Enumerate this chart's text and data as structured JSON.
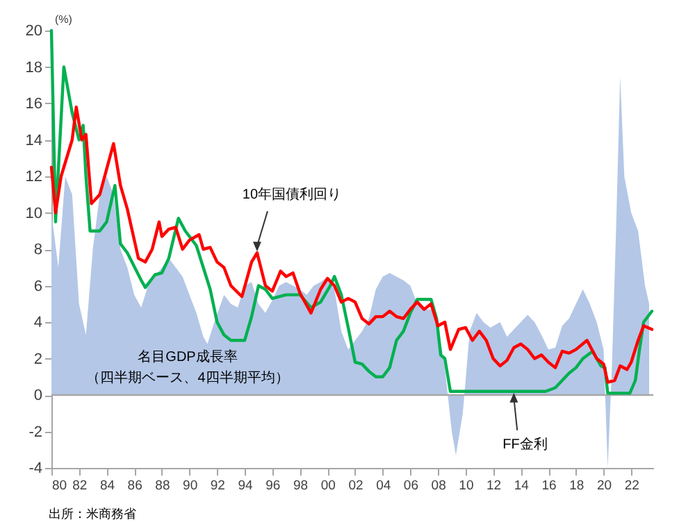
{
  "chart_data": {
    "type": "line",
    "ylabel": "(%)",
    "xlim": [
      1980,
      2023.6
    ],
    "xticks": [
      {
        "value": 1980,
        "label": "80"
      },
      {
        "value": 1982,
        "label": "82"
      },
      {
        "value": 1984,
        "label": "84"
      },
      {
        "value": 1986,
        "label": "86"
      },
      {
        "value": 1988,
        "label": "88"
      },
      {
        "value": 1990,
        "label": "90"
      },
      {
        "value": 1992,
        "label": "92"
      },
      {
        "value": 1994,
        "label": "94"
      },
      {
        "value": 1996,
        "label": "96"
      },
      {
        "value": 1998,
        "label": "98"
      },
      {
        "value": 2000,
        "label": "00"
      },
      {
        "value": 2002,
        "label": "02"
      },
      {
        "value": 2004,
        "label": "04"
      },
      {
        "value": 2006,
        "label": "06"
      },
      {
        "value": 2008,
        "label": "08"
      },
      {
        "value": 2010,
        "label": "10"
      },
      {
        "value": 2012,
        "label": "12"
      },
      {
        "value": 2014,
        "label": "14"
      },
      {
        "value": 2016,
        "label": "16"
      },
      {
        "value": 2018,
        "label": "18"
      },
      {
        "value": 2020,
        "label": "20"
      },
      {
        "value": 2022,
        "label": "22"
      }
    ],
    "ylim": [
      -4,
      20
    ],
    "yticks": [
      -4,
      -2,
      0,
      2,
      4,
      6,
      8,
      10,
      12,
      14,
      16,
      18,
      20
    ],
    "ref_lines": [
      {
        "axis": "y",
        "value": 0,
        "color": "#a6a6a6"
      }
    ],
    "series": [
      {
        "type": "area",
        "color": "#b4c7e7",
        "x": [
          1980,
          1980.5,
          1981,
          1981.5,
          1982,
          1982.5,
          1983,
          1983.5,
          1984,
          1984.5,
          1985,
          1985.5,
          1986,
          1986.5,
          1987,
          1987.5,
          1988,
          1988.5,
          1989,
          1989.5,
          1990,
          1990.5,
          1991,
          1991.3,
          1991.8,
          1992.5,
          1993,
          1993.5,
          1994,
          1994.5,
          1995,
          1995.5,
          1996,
          1996.5,
          1997,
          1998,
          1998.5,
          1999,
          1999.5,
          2000,
          2000.5,
          2001,
          2001.5,
          2002,
          2002.5,
          2003,
          2003.5,
          2004,
          2004.5,
          2005,
          2005.5,
          2006,
          2006.5,
          2007,
          2007.5,
          2008,
          2008.5,
          2009,
          2009.3,
          2009.8,
          2010.3,
          2010.8,
          2011.3,
          2011.8,
          2012.5,
          2013,
          2013.5,
          2014,
          2014.5,
          2015,
          2015.5,
          2016,
          2016.5,
          2017,
          2017.5,
          2018,
          2018.5,
          2019,
          2019.5,
          2020,
          2020.3,
          2020.6,
          2020.9,
          2021.2,
          2021.5,
          2022,
          2022.5,
          2023,
          2023.3
        ],
        "values": [
          10,
          7,
          12,
          11,
          5,
          3.3,
          8,
          11,
          12,
          11,
          8,
          7,
          5.5,
          4.8,
          6,
          6.5,
          7,
          7.5,
          7,
          6.5,
          5.5,
          4.5,
          3.2,
          2.8,
          4,
          5.5,
          5,
          4.8,
          6,
          6.2,
          5,
          4.5,
          5.2,
          6,
          6.2,
          5.8,
          5.5,
          6,
          6.2,
          6.5,
          5.8,
          3.5,
          2.5,
          3,
          3.5,
          4.2,
          5.8,
          6.5,
          6.7,
          6.5,
          6.3,
          6,
          5,
          4.7,
          4.7,
          3.8,
          1.5,
          -2,
          -3.3,
          -1,
          3.5,
          4.5,
          4,
          3.7,
          4,
          3.2,
          3.6,
          4,
          4.4,
          4,
          3.3,
          2.5,
          2.6,
          3.8,
          4.2,
          5,
          5.8,
          5,
          4,
          2.5,
          -4,
          1.5,
          9,
          17.5,
          12,
          10,
          9,
          6,
          5
        ]
      },
      {
        "color": "#00b050",
        "x": [
          1980,
          1980.3,
          1980.9,
          1981.5,
          1982,
          1982.3,
          1982.5,
          1982.8,
          1983.5,
          1984,
          1984.6,
          1985,
          1985.5,
          1986.5,
          1986.8,
          1987.5,
          1988,
          1988.5,
          1989.2,
          1989.7,
          1990.5,
          1991,
          1991.5,
          1992,
          1992.5,
          1993,
          1994,
          1994.5,
          1995,
          1995.5,
          1996,
          1997,
          1998,
          1998.8,
          1999.5,
          2000.2,
          2000.5,
          2001,
          2001.5,
          2002,
          2002.5,
          2003,
          2003.5,
          2004,
          2004.5,
          2005,
          2005.5,
          2006,
          2006.5,
          2007.5,
          2007.9,
          2008.2,
          2008.5,
          2008.9,
          2015.8,
          2016.5,
          2017,
          2017.5,
          2018,
          2018.5,
          2019.2,
          2019.8,
          2020.1,
          2020.3,
          2021.9,
          2022.3,
          2022.6,
          2022.9,
          2023.5
        ],
        "values": [
          20,
          9.5,
          18,
          15.5,
          14,
          14.8,
          12,
          9,
          9,
          9.5,
          11.5,
          8.3,
          7.8,
          6.3,
          5.9,
          6.6,
          6.7,
          7.5,
          9.7,
          9,
          8.2,
          7,
          5.8,
          4,
          3.3,
          3,
          3,
          4.3,
          6,
          5.8,
          5.3,
          5.5,
          5.5,
          4.8,
          5.1,
          6,
          6.5,
          5.5,
          3.7,
          1.8,
          1.7,
          1.3,
          1,
          1,
          1.5,
          3,
          3.5,
          4.5,
          5.25,
          5.25,
          4.2,
          2.2,
          2,
          0.2,
          0.2,
          0.4,
          0.8,
          1.2,
          1.5,
          2,
          2.4,
          1.6,
          1.5,
          0.1,
          0.1,
          0.8,
          2.5,
          4,
          4.6
        ]
      },
      {
        "color": "#ff0000",
        "x": [
          1980,
          1980.3,
          1980.7,
          1981.5,
          1981.8,
          1982.2,
          1982.5,
          1982.9,
          1983.5,
          1984.5,
          1985,
          1985.5,
          1986.3,
          1986.8,
          1987.3,
          1987.8,
          1988,
          1988.5,
          1989,
          1989.5,
          1990,
          1990.7,
          1991,
          1991.5,
          1992,
          1992.5,
          1993,
          1993.8,
          1994.5,
          1994.9,
          1995.5,
          1996,
          1996.6,
          1997,
          1997.5,
          1998,
          1998.8,
          1999.5,
          2000,
          2000.5,
          2001,
          2001.5,
          2002,
          2002.5,
          2003,
          2003.5,
          2004,
          2004.5,
          2005,
          2005.5,
          2006,
          2006.5,
          2007,
          2007.5,
          2008,
          2008.5,
          2008.9,
          2009.5,
          2010,
          2010.5,
          2011,
          2011.5,
          2012,
          2012.5,
          2013,
          2013.5,
          2014,
          2014.5,
          2015,
          2015.5,
          2016,
          2016.5,
          2017,
          2017.5,
          2018,
          2018.8,
          2019.5,
          2020,
          2020.3,
          2020.8,
          2021.2,
          2021.7,
          2022,
          2022.5,
          2022.9,
          2023.5
        ],
        "values": [
          12.5,
          10,
          12,
          14,
          15.8,
          14,
          14.3,
          10.5,
          11,
          13.8,
          11.5,
          10.2,
          7.5,
          7.3,
          8,
          9.5,
          8.7,
          9.1,
          9.2,
          8,
          8.5,
          8.8,
          8,
          8.1,
          7.3,
          7,
          6,
          5.4,
          7.3,
          7.8,
          6,
          5.7,
          6.8,
          6.5,
          6.7,
          5.6,
          4.5,
          5.8,
          6.4,
          6,
          5.1,
          5.3,
          5.1,
          4.2,
          3.9,
          4.3,
          4.3,
          4.6,
          4.3,
          4.2,
          4.7,
          5.1,
          4.7,
          5,
          3.8,
          4,
          2.5,
          3.6,
          3.7,
          3,
          3.5,
          3,
          2,
          1.6,
          1.9,
          2.6,
          2.8,
          2.5,
          2,
          2.2,
          1.8,
          1.5,
          2.4,
          2.3,
          2.5,
          3,
          2,
          1.7,
          0.7,
          0.8,
          1.6,
          1.4,
          1.8,
          3,
          3.8,
          3.6
        ]
      }
    ],
    "annotations": [
      {
        "text": "10年国債利回り",
        "x": 1994.9,
        "y": 7.8
      },
      {
        "text": "FF金利",
        "x": 2013.5,
        "y": 0.2
      },
      "名目GDP成長率",
      "（四半期ベース、4四半期平均）",
      "出所：米商務省"
    ]
  }
}
